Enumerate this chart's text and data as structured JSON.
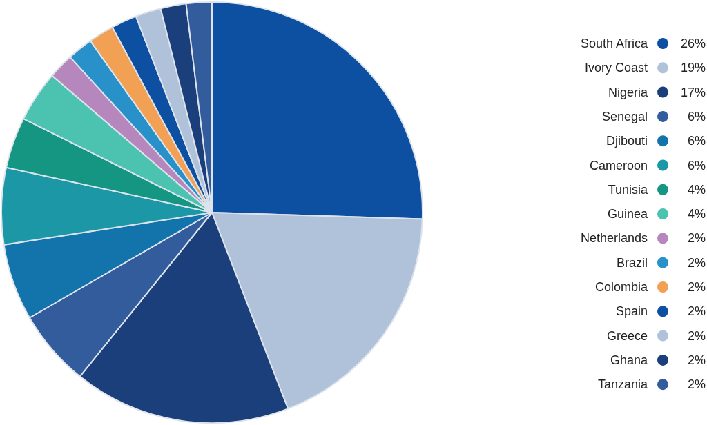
{
  "chart_data": {
    "type": "pie",
    "categories": [
      "South Africa",
      "Ivory Coast",
      "Nigeria",
      "Senegal",
      "Djibouti",
      "Cameroon",
      "Tunisia",
      "Guinea",
      "Netherlands",
      "Brazil",
      "Colombia",
      "Spain",
      "Greece",
      "Ghana",
      "Tanzania"
    ],
    "values": [
      26,
      19,
      17,
      6,
      6,
      6,
      4,
      4,
      2,
      2,
      2,
      2,
      2,
      2,
      2
    ],
    "value_labels": [
      "26%",
      "19%",
      "17%",
      "6%",
      "6%",
      "6%",
      "4%",
      "4%",
      "2%",
      "2%",
      "2%",
      "2%",
      "2%",
      "2%",
      "2%"
    ],
    "colors": [
      "#0d4fa0",
      "#b0c2da",
      "#1a3f7a",
      "#335c9c",
      "#1373ab",
      "#1b97a5",
      "#159683",
      "#4cc3b0",
      "#b587bd",
      "#2891c9",
      "#f2a154",
      "#0d4fa0",
      "#b0c2da",
      "#1a3f7a",
      "#335c9c"
    ],
    "legend": "right"
  }
}
